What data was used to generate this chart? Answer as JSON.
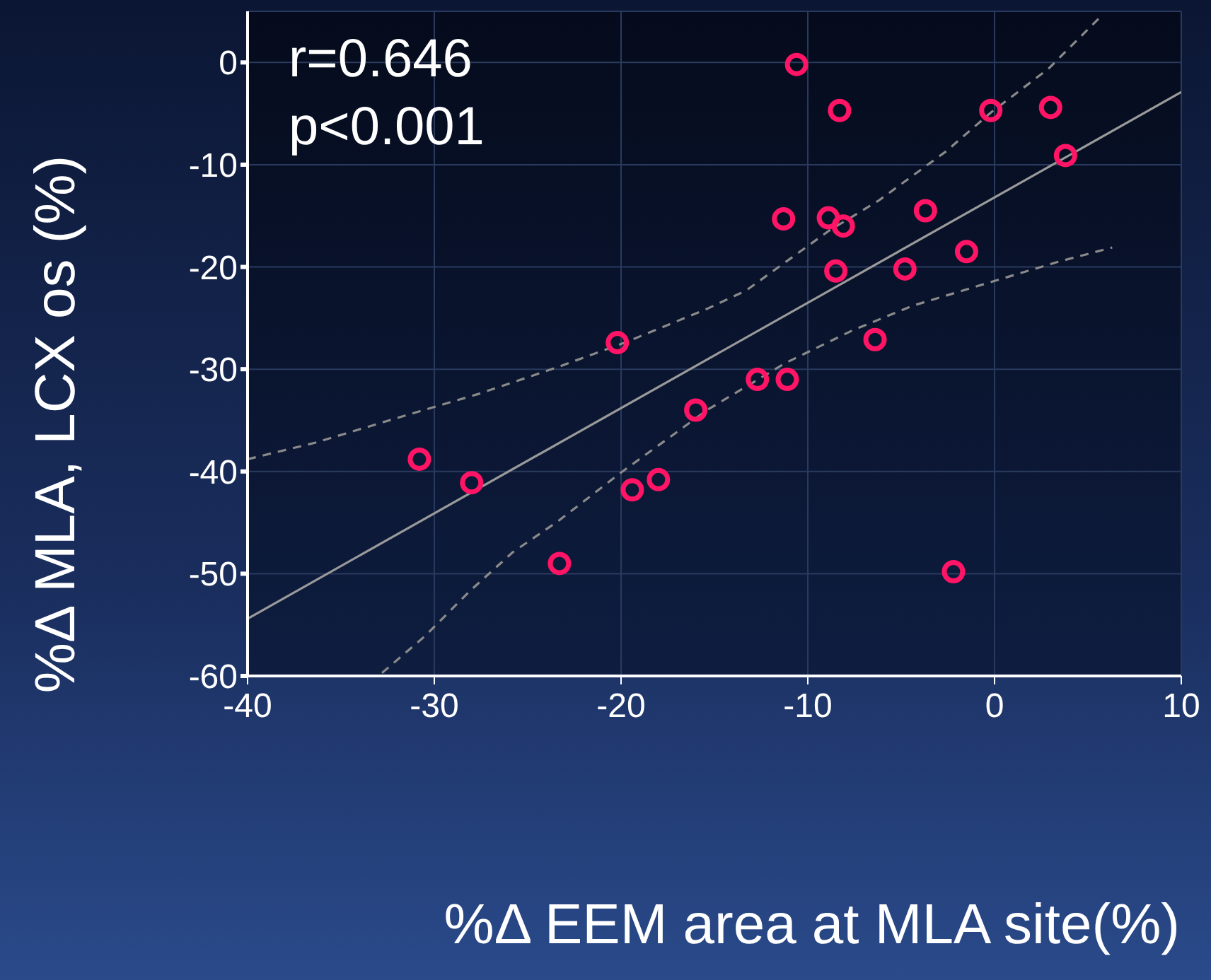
{
  "chart_data": {
    "type": "scatter",
    "xlabel": "%Δ EEM area at MLA site(%)",
    "ylabel": "%Δ MLA, LCX os (%)",
    "annotations": [
      "r=0.646",
      "p<0.001"
    ],
    "xlim": [
      -40,
      10
    ],
    "xticks": [
      -40,
      -30,
      -20,
      -10,
      0,
      10
    ],
    "ylim": [
      -60,
      5
    ],
    "yticks": [
      -60,
      -50,
      -40,
      -30,
      -20,
      -10,
      0
    ],
    "grid": true,
    "marker": "circle",
    "series": [
      {
        "color": "#ff1466",
        "x": [
          -30.8,
          -28.0,
          -23.3,
          -20.2,
          -19.4,
          -18.0,
          -16.0,
          -12.7,
          -11.1,
          -11.3,
          -10.6,
          -8.3,
          -8.9,
          -8.1,
          -8.5,
          -6.4,
          -4.8,
          -3.7,
          -1.5,
          -2.2,
          -0.2,
          3.0,
          3.8
        ],
        "values": [
          -38.8,
          -41.1,
          -49.0,
          -27.4,
          -41.8,
          -40.8,
          -34.0,
          -31.0,
          -31.0,
          -15.3,
          -0.2,
          -4.7,
          -15.2,
          -16.0,
          -20.4,
          -27.1,
          -20.2,
          -14.5,
          -18.5,
          -49.8,
          -4.7,
          -4.4,
          -9.1
        ]
      },
      {
        "type": "line",
        "color": "#9a9a9a",
        "marker": "none",
        "line_style": "solid",
        "x": [
          -40,
          10
        ],
        "values": [
          -54.4,
          -2.9
        ]
      },
      {
        "type": "line",
        "color": "#8a8a8a",
        "marker": "none",
        "line_style": "dashed",
        "x": [
          -40,
          -36.4,
          -31.5,
          -27.6,
          -23.4,
          -19.8,
          -15.4,
          -13.3,
          -8.9,
          -6.2,
          -2.6,
          -0.2,
          2.9,
          5.8
        ],
        "values": [
          -38.8,
          -37.2,
          -34.5,
          -32.4,
          -29.8,
          -27.4,
          -24.1,
          -22.3,
          -16.5,
          -13.5,
          -8.7,
          -4.9,
          -0.6,
          4.7
        ]
      },
      {
        "type": "line",
        "color": "#8a8a8a",
        "marker": "none",
        "line_style": "dashed",
        "x": [
          -32.8,
          -30.5,
          -28.1,
          -25.8,
          -23.4,
          -20.0,
          -16.9,
          -15.4,
          -11.2,
          -7.6,
          -4.4,
          0.3,
          3.4,
          6.3
        ],
        "values": [
          -59.7,
          -56.1,
          -51.7,
          -47.9,
          -44.9,
          -40.1,
          -36.0,
          -34.0,
          -29.4,
          -26.2,
          -23.8,
          -21.2,
          -19.5,
          -18.1
        ]
      }
    ]
  }
}
